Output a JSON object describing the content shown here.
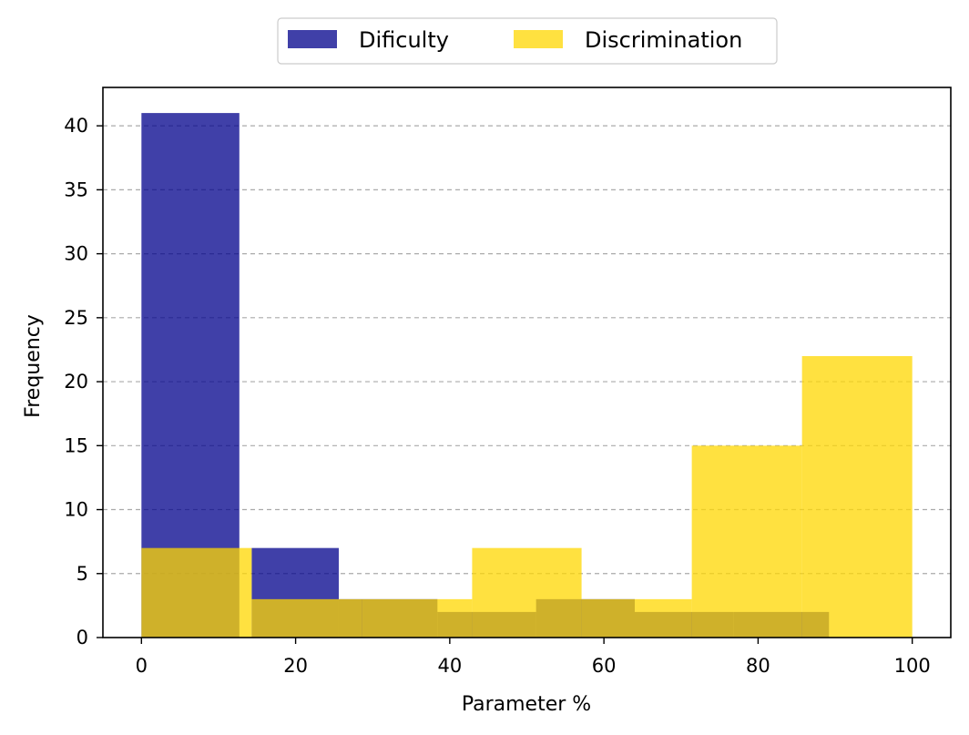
{
  "chart_data": {
    "type": "histogram",
    "title": "",
    "xlabel": "Parameter %",
    "ylabel": "Frequency",
    "xlim": [
      -5,
      105
    ],
    "ylim": [
      0,
      43
    ],
    "xticks": [
      0,
      20,
      40,
      60,
      80,
      100
    ],
    "yticks": [
      0,
      5,
      10,
      15,
      20,
      25,
      30,
      35,
      40
    ],
    "grid": "y-dashed",
    "legend_position": "top-center",
    "series": [
      {
        "name": "Dificulty",
        "color": "#00008B",
        "opacity": 0.75,
        "bins": [
          {
            "x0": 0.0,
            "x1": 12.7,
            "count": 41
          },
          {
            "x0": 14.3,
            "x1": 25.6,
            "count": 7
          },
          {
            "x0": 25.6,
            "x1": 38.4,
            "count": 3
          },
          {
            "x0": 38.4,
            "x1": 51.2,
            "count": 2
          },
          {
            "x0": 51.2,
            "x1": 64.0,
            "count": 3
          },
          {
            "x0": 64.0,
            "x1": 76.8,
            "count": 2
          },
          {
            "x0": 76.8,
            "x1": 89.2,
            "count": 2
          }
        ]
      },
      {
        "name": "Discrimination",
        "color": "#FFD700",
        "opacity": 0.75,
        "bins": [
          {
            "x0": 0.0,
            "x1": 14.3,
            "count": 7
          },
          {
            "x0": 14.3,
            "x1": 28.6,
            "count": 3
          },
          {
            "x0": 28.6,
            "x1": 42.9,
            "count": 3
          },
          {
            "x0": 42.9,
            "x1": 57.1,
            "count": 7
          },
          {
            "x0": 57.1,
            "x1": 71.4,
            "count": 3
          },
          {
            "x0": 71.4,
            "x1": 85.7,
            "count": 15
          },
          {
            "x0": 85.7,
            "x1": 100.0,
            "count": 22
          }
        ]
      }
    ]
  }
}
